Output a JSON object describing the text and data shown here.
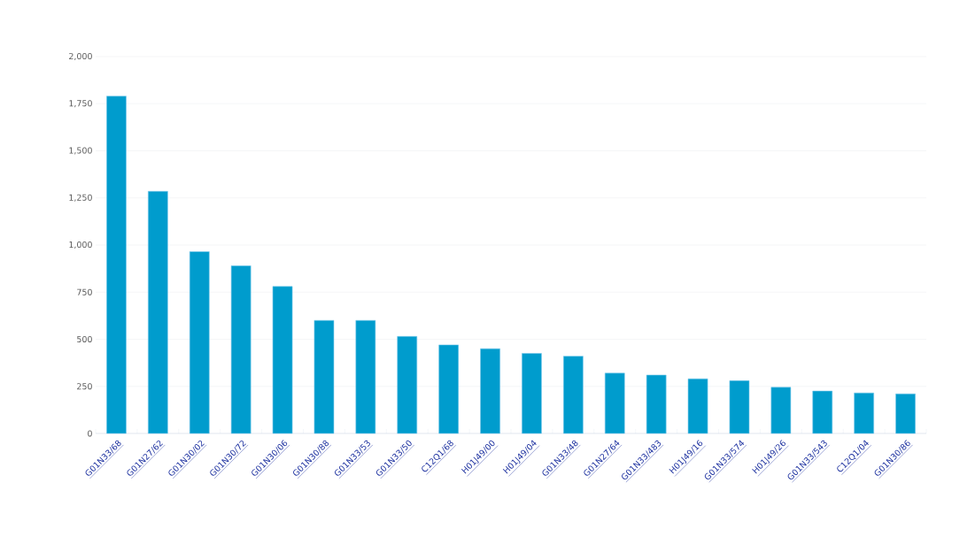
{
  "chart_data": {
    "type": "bar",
    "categories": [
      "G01N33/68",
      "G01N27/62",
      "G01N30/02",
      "G01N30/72",
      "G01N30/06",
      "G01N30/88",
      "G01N33/53",
      "G01N33/50",
      "C12Q1/68",
      "H01J49/00",
      "H01J49/04",
      "G01N33/48",
      "G01N27/64",
      "G01N33/483",
      "H01J49/16",
      "G01N33/574",
      "H01J49/26",
      "G01N33/543",
      "C12Q1/04",
      "G01N30/86"
    ],
    "values": [
      1790,
      1285,
      965,
      890,
      780,
      600,
      600,
      515,
      470,
      450,
      425,
      410,
      320,
      310,
      290,
      280,
      245,
      225,
      215,
      210
    ],
    "color": "#009ccd",
    "ylim": [
      0,
      2000
    ],
    "yticks": [
      0,
      250,
      500,
      750,
      {
        "value": 1000,
        "label": "1,000"
      },
      {
        "value": 1250,
        "label": "1,250"
      },
      {
        "value": 1500,
        "label": "1,500"
      },
      {
        "value": 1750,
        "label": "1,750"
      },
      {
        "value": 2000,
        "label": "2,000"
      }
    ],
    "grid": "y"
  }
}
